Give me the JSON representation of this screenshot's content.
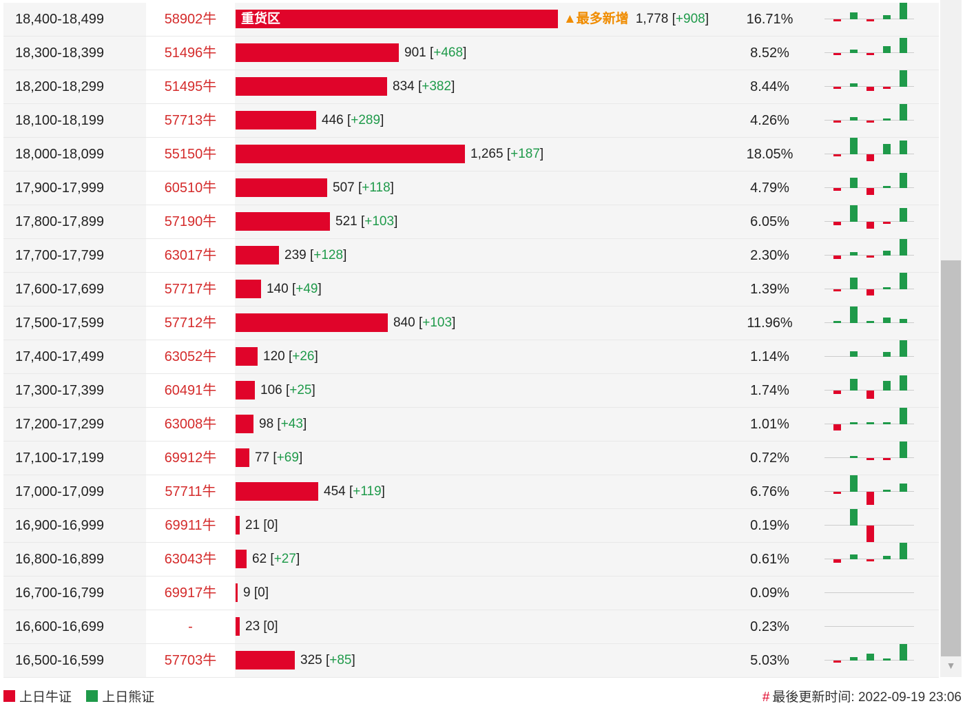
{
  "colors": {
    "bull": "#e0042a",
    "bear": "#1f9a4a",
    "hot": "#f08c00"
  },
  "max_count": 1778,
  "rows": [
    {
      "range": "18,400-18,499",
      "code": "58902牛",
      "count": "1,778",
      "change": "+908",
      "pct": "16.71%",
      "bar_value": 1778,
      "bar_label": "重货区",
      "hot": "▲最多新增",
      "mini": [
        {
          "c": "r",
          "v": -0.2
        },
        {
          "c": "g",
          "v": 0.6
        },
        {
          "c": "r",
          "v": -0.15
        },
        {
          "c": "g",
          "v": 0.35
        },
        {
          "c": "g",
          "v": 1.4
        }
      ]
    },
    {
      "range": "18,300-18,399",
      "code": "51496牛",
      "count": "901",
      "change": "+468",
      "pct": "8.52%",
      "bar_value": 901,
      "mini": [
        {
          "c": "r",
          "v": -0.2
        },
        {
          "c": "g",
          "v": 0.3
        },
        {
          "c": "r",
          "v": -0.2
        },
        {
          "c": "g",
          "v": 0.6
        },
        {
          "c": "g",
          "v": 1.3
        }
      ]
    },
    {
      "range": "18,200-18,299",
      "code": "51495牛",
      "count": "834",
      "change": "+382",
      "pct": "8.44%",
      "bar_value": 834,
      "mini": [
        {
          "c": "r",
          "v": -0.2
        },
        {
          "c": "g",
          "v": 0.3
        },
        {
          "c": "r",
          "v": -0.35
        },
        {
          "c": "r",
          "v": -0.2
        },
        {
          "c": "g",
          "v": 1.4
        }
      ]
    },
    {
      "range": "18,100-18,199",
      "code": "57713牛",
      "count": "446",
      "change": "+289",
      "pct": "4.26%",
      "bar_value": 446,
      "mini": [
        {
          "c": "r",
          "v": -0.15
        },
        {
          "c": "g",
          "v": 0.3
        },
        {
          "c": "r",
          "v": -0.2
        },
        {
          "c": "g",
          "v": 0.2
        },
        {
          "c": "g",
          "v": 1.4
        }
      ]
    },
    {
      "range": "18,000-18,099",
      "code": "55150牛",
      "count": "1,265",
      "change": "+187",
      "pct": "18.05%",
      "bar_value": 1265,
      "mini": [
        {
          "c": "r",
          "v": -0.2
        },
        {
          "c": "g",
          "v": 1.4
        },
        {
          "c": "r",
          "v": -0.6
        },
        {
          "c": "g",
          "v": 0.9
        },
        {
          "c": "g",
          "v": 1.2
        }
      ]
    },
    {
      "range": "17,900-17,999",
      "code": "60510牛",
      "count": "507",
      "change": "+118",
      "pct": "4.79%",
      "bar_value": 507,
      "mini": [
        {
          "c": "r",
          "v": -0.25
        },
        {
          "c": "g",
          "v": 0.9
        },
        {
          "c": "r",
          "v": -0.6
        },
        {
          "c": "g",
          "v": 0.15
        },
        {
          "c": "g",
          "v": 1.3
        }
      ]
    },
    {
      "range": "17,800-17,899",
      "code": "57190牛",
      "count": "521",
      "change": "+103",
      "pct": "6.05%",
      "bar_value": 521,
      "mini": [
        {
          "c": "r",
          "v": -0.3
        },
        {
          "c": "g",
          "v": 1.4
        },
        {
          "c": "r",
          "v": -0.6
        },
        {
          "c": "r",
          "v": -0.15
        },
        {
          "c": "g",
          "v": 1.2
        }
      ]
    },
    {
      "range": "17,700-17,799",
      "code": "63017牛",
      "count": "239",
      "change": "+128",
      "pct": "2.30%",
      "bar_value": 239,
      "mini": [
        {
          "c": "r",
          "v": -0.3
        },
        {
          "c": "g",
          "v": 0.3
        },
        {
          "c": "r",
          "v": -0.15
        },
        {
          "c": "g",
          "v": 0.4
        },
        {
          "c": "g",
          "v": 1.4
        }
      ]
    },
    {
      "range": "17,600-17,699",
      "code": "57717牛",
      "count": "140",
      "change": "+49",
      "pct": "1.39%",
      "bar_value": 140,
      "mini": [
        {
          "c": "r",
          "v": -0.2
        },
        {
          "c": "g",
          "v": 1.0
        },
        {
          "c": "r",
          "v": -0.5
        },
        {
          "c": "g",
          "v": 0.15
        },
        {
          "c": "g",
          "v": 1.4
        }
      ]
    },
    {
      "range": "17,500-17,599",
      "code": "57712牛",
      "count": "840",
      "change": "+103",
      "pct": "11.96%",
      "bar_value": 840,
      "mini": [
        {
          "c": "g",
          "v": 0.1
        },
        {
          "c": "g",
          "v": 1.4
        },
        {
          "c": "g",
          "v": 0.15
        },
        {
          "c": "g",
          "v": 0.45
        },
        {
          "c": "g",
          "v": 0.35
        }
      ]
    },
    {
      "range": "17,400-17,499",
      "code": "63052牛",
      "count": "120",
      "change": "+26",
      "pct": "1.14%",
      "bar_value": 120,
      "mini": [
        {
          "c": "g",
          "v": 0
        },
        {
          "c": "g",
          "v": 0.45
        },
        {
          "c": "g",
          "v": 0
        },
        {
          "c": "g",
          "v": 0.4
        },
        {
          "c": "g",
          "v": 1.4
        }
      ]
    },
    {
      "range": "17,300-17,399",
      "code": "60491牛",
      "count": "106",
      "change": "+25",
      "pct": "1.74%",
      "bar_value": 106,
      "mini": [
        {
          "c": "r",
          "v": -0.3
        },
        {
          "c": "g",
          "v": 1.0
        },
        {
          "c": "r",
          "v": -0.7
        },
        {
          "c": "g",
          "v": 0.8
        },
        {
          "c": "g",
          "v": 1.3
        }
      ]
    },
    {
      "range": "17,200-17,299",
      "code": "63008牛",
      "count": "98",
      "change": "+43",
      "pct": "1.01%",
      "bar_value": 98,
      "mini": [
        {
          "c": "r",
          "v": -0.5
        },
        {
          "c": "g",
          "v": 0.2
        },
        {
          "c": "g",
          "v": 0.1
        },
        {
          "c": "g",
          "v": 0.1
        },
        {
          "c": "g",
          "v": 1.4
        }
      ]
    },
    {
      "range": "17,100-17,199",
      "code": "69912牛",
      "count": "77",
      "change": "+69",
      "pct": "0.72%",
      "bar_value": 77,
      "mini": [
        {
          "c": "g",
          "v": 0
        },
        {
          "c": "g",
          "v": 0.1
        },
        {
          "c": "r",
          "v": -0.1
        },
        {
          "c": "r",
          "v": -0.1
        },
        {
          "c": "g",
          "v": 1.4
        }
      ]
    },
    {
      "range": "17,000-17,099",
      "code": "57711牛",
      "count": "454",
      "change": "+119",
      "pct": "6.76%",
      "bar_value": 454,
      "mini": [
        {
          "c": "r",
          "v": -0.2
        },
        {
          "c": "g",
          "v": 1.4
        },
        {
          "c": "r",
          "v": -1.1
        },
        {
          "c": "g",
          "v": 0.15
        },
        {
          "c": "g",
          "v": 0.7
        }
      ]
    },
    {
      "range": "16,900-16,999",
      "code": "69911牛",
      "count": "21",
      "change": "0",
      "pct": "0.19%",
      "bar_value": 21,
      "mini": [
        {
          "c": "g",
          "v": 0
        },
        {
          "c": "g",
          "v": 1.4
        },
        {
          "c": "r",
          "v": -1.4
        },
        {
          "c": "g",
          "v": 0
        },
        {
          "c": "g",
          "v": 0
        }
      ]
    },
    {
      "range": "16,800-16,899",
      "code": "63043牛",
      "count": "62",
      "change": "+27",
      "pct": "0.61%",
      "bar_value": 62,
      "mini": [
        {
          "c": "r",
          "v": -0.3
        },
        {
          "c": "g",
          "v": 0.4
        },
        {
          "c": "r",
          "v": -0.2
        },
        {
          "c": "g",
          "v": 0.3
        },
        {
          "c": "g",
          "v": 1.4
        }
      ]
    },
    {
      "range": "16,700-16,799",
      "code": "69917牛",
      "count": "9",
      "change": "0",
      "pct": "0.09%",
      "bar_value": 9,
      "mini": []
    },
    {
      "range": "16,600-16,699",
      "code": "-",
      "count": "23",
      "change": "0",
      "pct": "0.23%",
      "bar_value": 23,
      "mini": []
    },
    {
      "range": "16,500-16,599",
      "code": "57703牛",
      "count": "325",
      "change": "+85",
      "pct": "5.03%",
      "bar_value": 325,
      "mini": [
        {
          "c": "r",
          "v": -0.1
        },
        {
          "c": "g",
          "v": 0.3
        },
        {
          "c": "g",
          "v": 0.6
        },
        {
          "c": "g",
          "v": 0.2
        },
        {
          "c": "g",
          "v": 1.4
        }
      ]
    }
  ],
  "legend": {
    "bull_label": "上日牛证",
    "bear_label": "上日熊证"
  },
  "footer": {
    "hash": "#",
    "update_text": "最後更新时间: 2022-09-19 23:06"
  }
}
